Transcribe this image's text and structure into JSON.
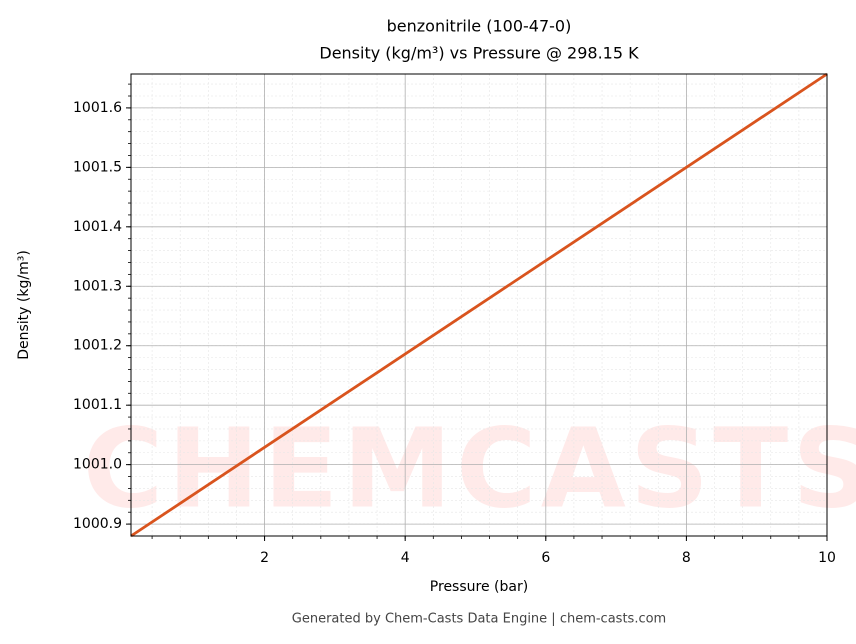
{
  "chart_data": {
    "type": "line",
    "title": "benzonitrile (100-47-0)",
    "subtitle": "Density (kg/m³) vs Pressure @ 298.15 K",
    "xlabel": "Pressure (bar)",
    "ylabel": "Density (kg/m³)",
    "watermark": "CHEMCASTS",
    "footer": "Generated by Chem-Casts Data Engine | chem-casts.com",
    "x": [
      0.1,
      10
    ],
    "series": [
      {
        "name": "benzonitrile",
        "color": "#d9541e",
        "values": [
          1000.88,
          1001.657
        ]
      }
    ],
    "xlim": [
      0.1,
      10
    ],
    "xticks": [
      2,
      4,
      6,
      8,
      10
    ],
    "ylim": [
      1000.88,
      1001.657
    ],
    "yticks": [
      1000.9,
      {
        "value": 1001.0,
        "label": "1001.0"
      },
      1001.1,
      1001.2,
      1001.3,
      1001.4,
      1001.5,
      1001.6
    ],
    "grid": true,
    "minor_grid": true
  }
}
